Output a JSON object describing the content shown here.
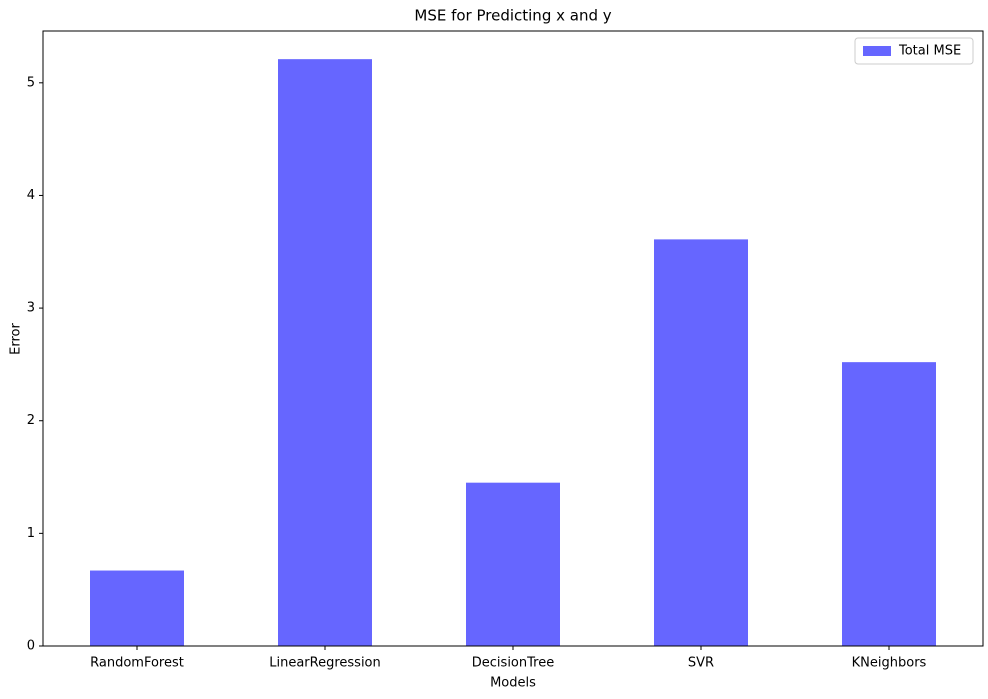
{
  "chart_data": {
    "type": "bar",
    "title": "MSE for Predicting x and y",
    "x_label": "Models",
    "y_label": "Error",
    "categories": [
      "RandomForest",
      "LinearRegression",
      "DecisionTree",
      "SVR",
      "KNeighbors"
    ],
    "series": [
      {
        "name": "Total MSE",
        "color": "#6666ff",
        "values": [
          0.67,
          5.21,
          1.45,
          3.61,
          2.52
        ]
      }
    ],
    "ylim": [
      0,
      5.46
    ],
    "yticks": [
      0,
      1,
      2,
      3,
      4,
      5
    ],
    "grid": false,
    "legend": "upper right"
  }
}
